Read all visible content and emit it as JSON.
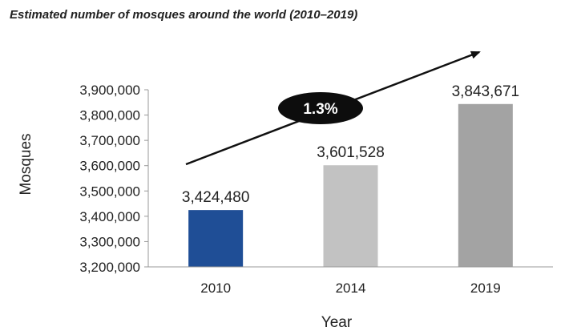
{
  "chart_data": {
    "type": "bar",
    "title": "Estimated number of mosques around the world (2010–2019)",
    "xlabel": "Year",
    "ylabel": "Mosques",
    "categories": [
      "2010",
      "2014",
      "2019"
    ],
    "values": [
      3424480,
      3601528,
      3843671
    ],
    "data_labels": [
      "3,424,480",
      "3,601,528",
      "3,843,671"
    ],
    "bar_colors": [
      "#1f4e96",
      "#c2c2c2",
      "#a3a3a3"
    ],
    "ylim": [
      3200000,
      3900000
    ],
    "y_ticks": [
      3200000,
      3300000,
      3400000,
      3500000,
      3600000,
      3700000,
      3800000,
      3900000
    ],
    "y_tick_labels": [
      "3,200,000",
      "3,300,000",
      "3,400,000",
      "3,500,000",
      "3,600,000",
      "3,700,000",
      "3,800,000",
      "3,900,000"
    ],
    "grid": false,
    "annotation": {
      "label": "1.3%",
      "shape": "trend-arrow"
    }
  }
}
